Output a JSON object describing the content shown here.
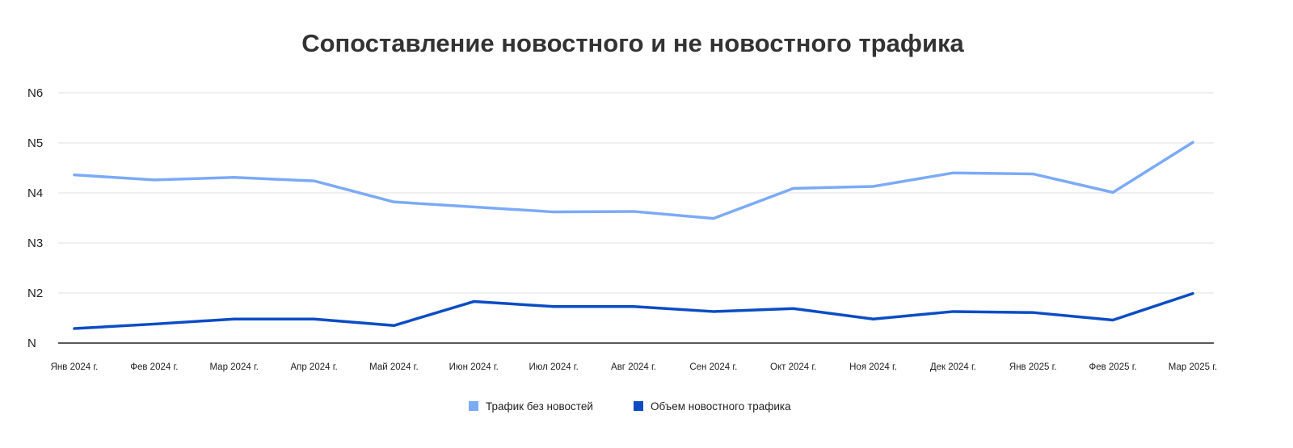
{
  "chart_data": {
    "type": "line",
    "title": "Сопоставление новостного и не новостного трафика",
    "xlabel": "",
    "ylabel": "",
    "categories": [
      "Янв 2024 г.",
      "Фев 2024 г.",
      "Мар 2024 г.",
      "Апр 2024 г.",
      "Май 2024 г.",
      "Июн 2024 г.",
      "Июл 2024 г.",
      "Авг 2024 г.",
      "Сен 2024 г.",
      "Окт 2024 г.",
      "Ноя 2024 г.",
      "Дек 2024 г.",
      "Янв 2025 г.",
      "Фев 2025 г.",
      "Мар 2025 г."
    ],
    "y_ticks": [
      "N",
      "N2",
      "N3",
      "N4",
      "N5",
      "N6"
    ],
    "ylim": [
      0,
      5
    ],
    "grid": true,
    "legend_position": "bottom",
    "series": [
      {
        "name": "Трафик без новостей",
        "color": "#7BAAF7",
        "values": [
          3.36,
          3.26,
          3.31,
          3.24,
          2.82,
          2.72,
          2.62,
          2.63,
          2.49,
          3.09,
          3.13,
          3.4,
          3.38,
          3.01,
          4.01
        ]
      },
      {
        "name": "Объем новостного трафика",
        "color": "#0B4CC5",
        "values": [
          0.29,
          0.38,
          0.48,
          0.48,
          0.35,
          0.83,
          0.73,
          0.73,
          0.63,
          0.69,
          0.48,
          0.63,
          0.61,
          0.46,
          0.99
        ]
      }
    ]
  }
}
